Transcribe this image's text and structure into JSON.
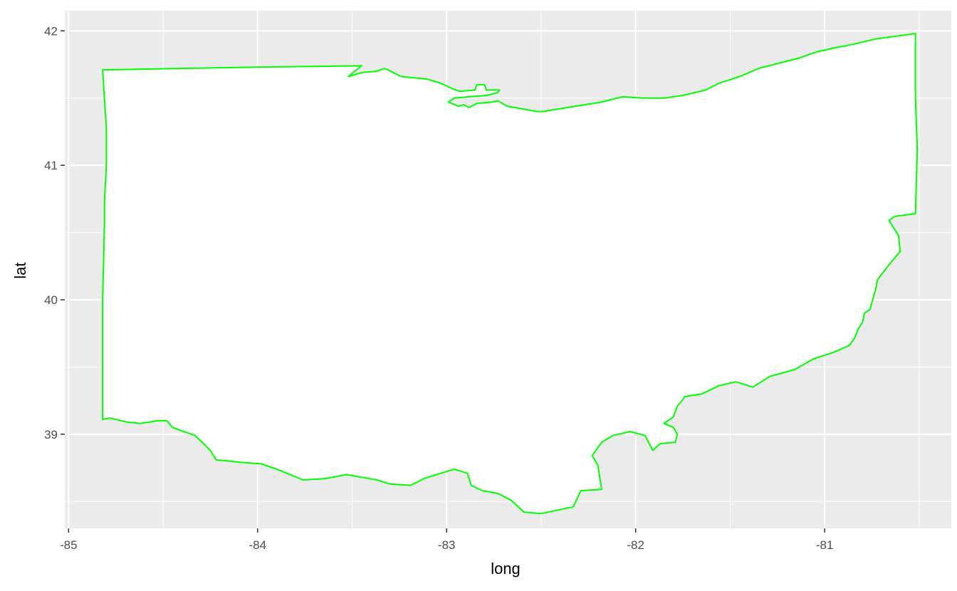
{
  "chart_data": {
    "type": "map",
    "xlabel": "long",
    "ylabel": "lat",
    "xlim": [
      -85.02,
      -80.33
    ],
    "ylim": [
      38.3,
      42.15
    ],
    "x_ticks": [
      -85,
      -84,
      -83,
      -82,
      -81
    ],
    "x_tick_labels": [
      "-85",
      "-84",
      "-83",
      "-82",
      "-81"
    ],
    "y_ticks": [
      39,
      40,
      41,
      42
    ],
    "y_tick_labels": [
      "39",
      "40",
      "41",
      "42"
    ],
    "grid": true,
    "colors": {
      "panel_background": "#ebebeb",
      "grid": "#ffffff",
      "fill": "#ffffff",
      "outline": "#00ff00"
    },
    "region": {
      "name": "ohio",
      "outline": [
        [
          -84.82,
          41.71
        ],
        [
          -84.0,
          41.73
        ],
        [
          -83.45,
          41.74
        ],
        [
          -83.52,
          41.66
        ],
        [
          -83.45,
          41.69
        ],
        [
          -83.37,
          41.7
        ],
        [
          -83.33,
          41.72
        ],
        [
          -83.31,
          41.71
        ],
        [
          -83.24,
          41.66
        ],
        [
          -83.1,
          41.64
        ],
        [
          -83.03,
          41.61
        ],
        [
          -82.97,
          41.57
        ],
        [
          -82.93,
          41.55
        ],
        [
          -82.85,
          41.56
        ],
        [
          -82.84,
          41.6
        ],
        [
          -82.8,
          41.6
        ],
        [
          -82.79,
          41.56
        ],
        [
          -82.72,
          41.56
        ],
        [
          -82.73,
          41.54
        ],
        [
          -82.79,
          41.52
        ],
        [
          -82.88,
          41.51
        ],
        [
          -82.96,
          41.5
        ],
        [
          -82.99,
          41.47
        ],
        [
          -82.94,
          41.44
        ],
        [
          -82.91,
          41.45
        ],
        [
          -82.88,
          41.43
        ],
        [
          -82.84,
          41.46
        ],
        [
          -82.76,
          41.47
        ],
        [
          -82.73,
          41.48
        ],
        [
          -82.68,
          41.44
        ],
        [
          -82.52,
          41.4
        ],
        [
          -82.49,
          41.4
        ],
        [
          -82.36,
          41.43
        ],
        [
          -82.18,
          41.47
        ],
        [
          -82.07,
          41.51
        ],
        [
          -81.96,
          41.5
        ],
        [
          -81.85,
          41.5
        ],
        [
          -81.75,
          41.52
        ],
        [
          -81.63,
          41.56
        ],
        [
          -81.56,
          41.61
        ],
        [
          -81.45,
          41.66
        ],
        [
          -81.35,
          41.72
        ],
        [
          -81.24,
          41.76
        ],
        [
          -81.13,
          41.8
        ],
        [
          -81.05,
          41.84
        ],
        [
          -80.96,
          41.87
        ],
        [
          -80.85,
          41.9
        ],
        [
          -80.73,
          41.94
        ],
        [
          -80.52,
          41.98
        ],
        [
          -80.52,
          41.5
        ],
        [
          -80.51,
          41.12
        ],
        [
          -80.52,
          40.64
        ],
        [
          -80.63,
          40.62
        ],
        [
          -80.66,
          40.59
        ],
        [
          -80.61,
          40.48
        ],
        [
          -80.6,
          40.36
        ],
        [
          -80.66,
          40.26
        ],
        [
          -80.72,
          40.15
        ],
        [
          -80.73,
          40.08
        ],
        [
          -80.76,
          39.93
        ],
        [
          -80.79,
          39.9
        ],
        [
          -80.8,
          39.83
        ],
        [
          -80.82,
          39.79
        ],
        [
          -80.84,
          39.72
        ],
        [
          -80.87,
          39.66
        ],
        [
          -80.95,
          39.61
        ],
        [
          -81.06,
          39.56
        ],
        [
          -81.16,
          39.48
        ],
        [
          -81.29,
          39.43
        ],
        [
          -81.38,
          39.35
        ],
        [
          -81.47,
          39.39
        ],
        [
          -81.56,
          39.36
        ],
        [
          -81.65,
          39.3
        ],
        [
          -81.74,
          39.28
        ],
        [
          -81.76,
          39.24
        ],
        [
          -81.78,
          39.21
        ],
        [
          -81.8,
          39.13
        ],
        [
          -81.85,
          39.08
        ],
        [
          -81.8,
          39.05
        ],
        [
          -81.78,
          39.0
        ],
        [
          -81.79,
          38.94
        ],
        [
          -81.87,
          38.93
        ],
        [
          -81.91,
          38.88
        ],
        [
          -81.95,
          38.99
        ],
        [
          -82.03,
          39.02
        ],
        [
          -82.12,
          38.99
        ],
        [
          -82.18,
          38.94
        ],
        [
          -82.23,
          38.84
        ],
        [
          -82.2,
          38.77
        ],
        [
          -82.18,
          38.59
        ],
        [
          -82.29,
          38.58
        ],
        [
          -82.33,
          38.46
        ],
        [
          -82.5,
          38.41
        ],
        [
          -82.59,
          38.42
        ],
        [
          -82.66,
          38.51
        ],
        [
          -82.73,
          38.56
        ],
        [
          -82.81,
          38.58
        ],
        [
          -82.87,
          38.62
        ],
        [
          -82.89,
          38.71
        ],
        [
          -82.96,
          38.74
        ],
        [
          -83.12,
          38.67
        ],
        [
          -83.19,
          38.62
        ],
        [
          -83.3,
          38.63
        ],
        [
          -83.37,
          38.66
        ],
        [
          -83.53,
          38.7
        ],
        [
          -83.64,
          38.67
        ],
        [
          -83.76,
          38.66
        ],
        [
          -83.88,
          38.73
        ],
        [
          -83.98,
          38.78
        ],
        [
          -84.08,
          38.79
        ],
        [
          -84.22,
          38.81
        ],
        [
          -84.25,
          38.88
        ],
        [
          -84.33,
          38.99
        ],
        [
          -84.45,
          39.05
        ],
        [
          -84.48,
          39.1
        ],
        [
          -84.53,
          39.1
        ],
        [
          -84.62,
          39.08
        ],
        [
          -84.69,
          39.09
        ],
        [
          -84.78,
          39.12
        ],
        [
          -84.82,
          39.11
        ],
        [
          -84.82,
          40.0
        ],
        [
          -84.81,
          40.56
        ],
        [
          -84.81,
          40.73
        ],
        [
          -84.8,
          41.0
        ],
        [
          -84.8,
          41.27
        ],
        [
          -84.82,
          41.71
        ]
      ]
    }
  }
}
